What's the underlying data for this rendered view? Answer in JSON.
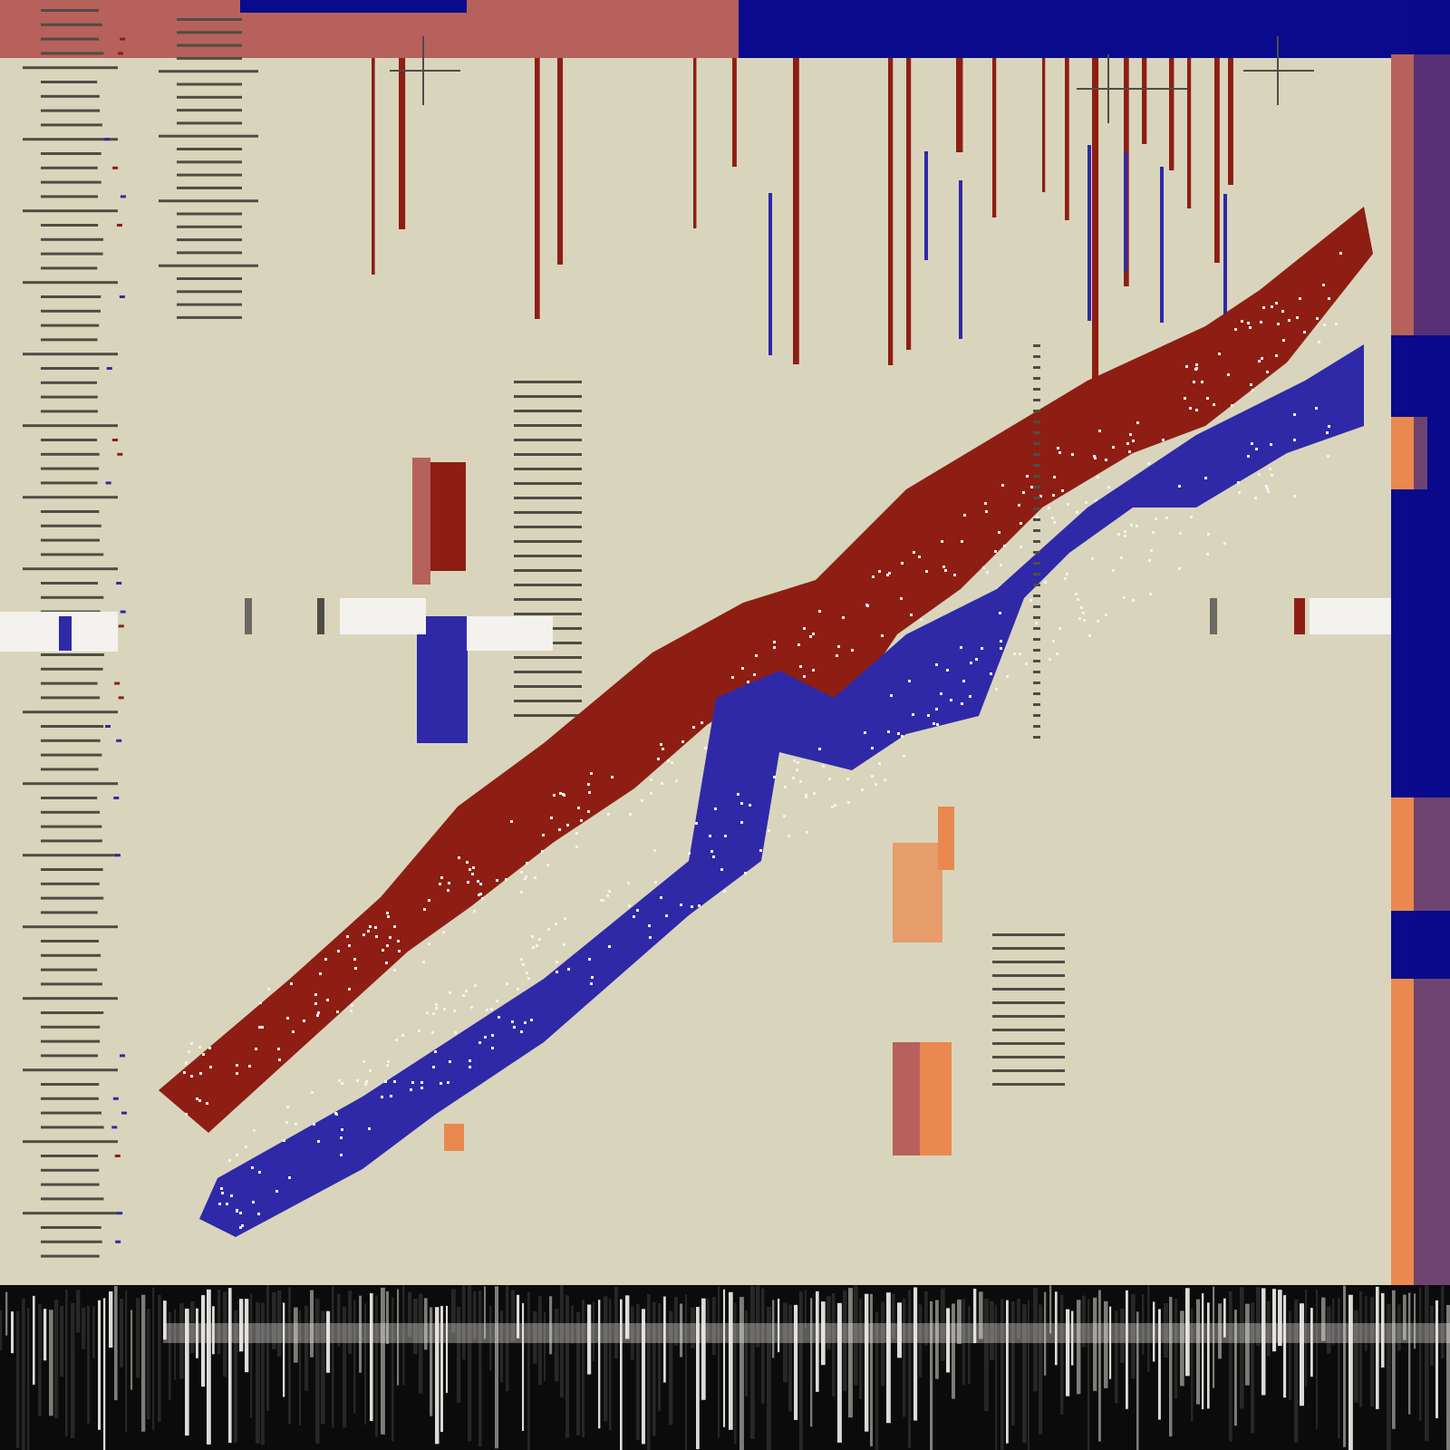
{
  "colors": {
    "background": "#d9d5bc",
    "red": "#8e1e14",
    "blue": "#2f29a8",
    "navy": "#0a0a8c",
    "pink": "#b7615c",
    "orange": "#e9894f",
    "ink": "#4e4d44",
    "black": "#0b0b0b",
    "white": "#f4f2ee"
  }
}
